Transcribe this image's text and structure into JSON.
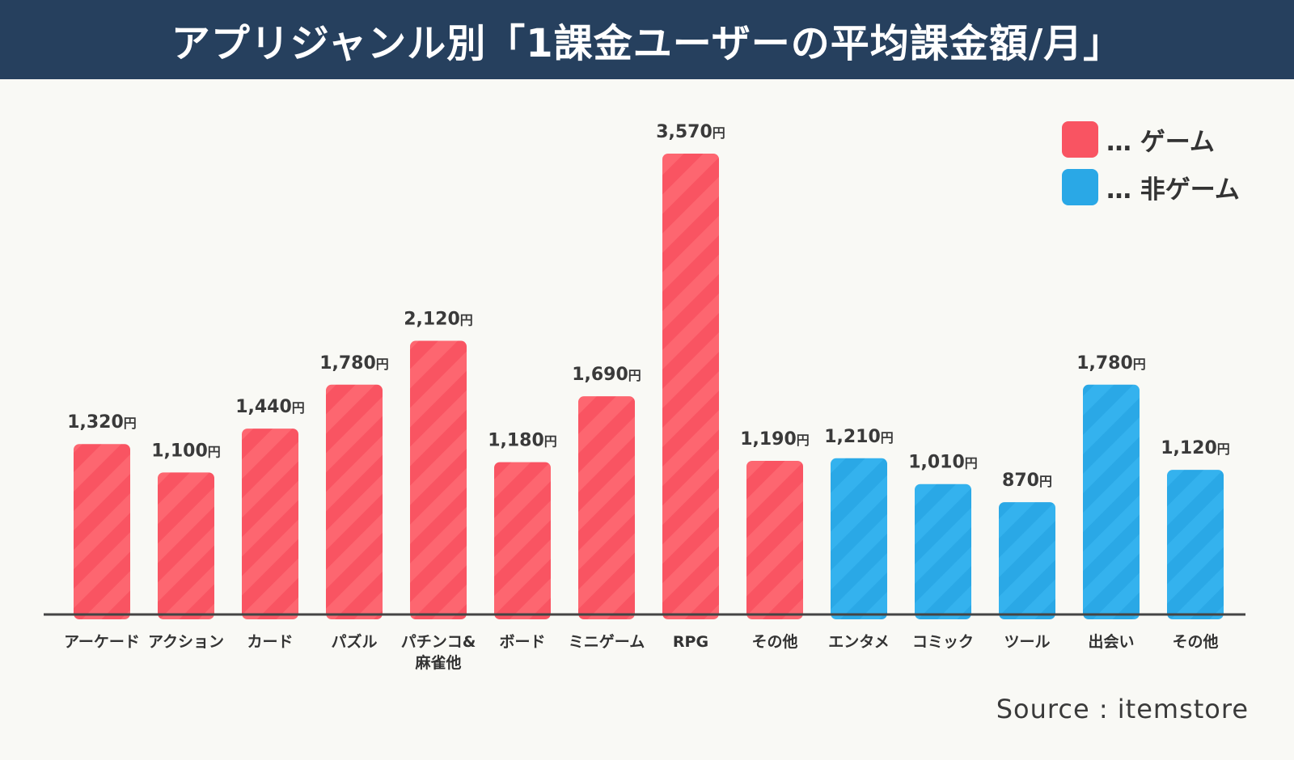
{
  "header": {
    "title": "アプリジャンル別「1課金ユーザーの平均課金額/月」"
  },
  "legend": {
    "items": [
      {
        "label": "… ゲーム",
        "color": "#f95462"
      },
      {
        "label": "… 非ゲーム",
        "color": "#2aa8e6"
      }
    ]
  },
  "source": "Source : itemstore",
  "chart_data": {
    "type": "bar",
    "unit": "円",
    "ylim": [
      0,
      3570
    ],
    "grid": false,
    "legend_position": "top-right",
    "categories": [
      "アーケード",
      "アクション",
      "カード",
      "パズル",
      "パチンコ&\n麻雀他",
      "ボード",
      "ミニゲーム",
      "RPG",
      "その他",
      "エンタメ",
      "コミック",
      "ツール",
      "出会い",
      "その他"
    ],
    "values": [
      1320,
      1100,
      1440,
      1780,
      2120,
      1180,
      1690,
      3570,
      1190,
      1210,
      1010,
      870,
      1780,
      1120
    ],
    "value_labels": [
      "1,320",
      "1,100",
      "1,440",
      "1,780",
      "2,120",
      "1,180",
      "1,690",
      "3,570",
      "1,190",
      "1,210",
      "1,010",
      "870",
      "1,780",
      "1,120"
    ],
    "group": [
      "game",
      "game",
      "game",
      "game",
      "game",
      "game",
      "game",
      "game",
      "game",
      "non-game",
      "non-game",
      "non-game",
      "non-game",
      "non-game"
    ],
    "colors": {
      "game": "#f95462",
      "non-game": "#2aa8e6"
    }
  }
}
